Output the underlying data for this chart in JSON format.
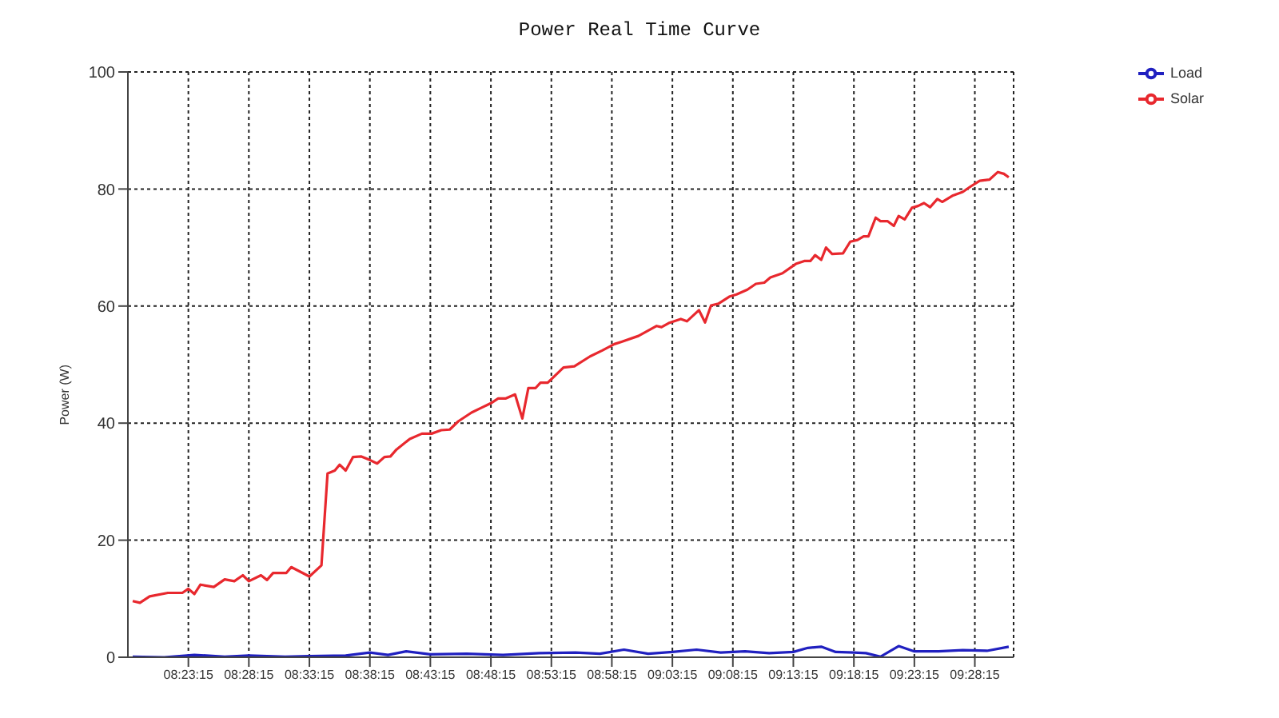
{
  "chart_data": {
    "type": "line",
    "title": "Power Real Time Curve",
    "ylabel": "Power (W)",
    "xlim": [
      8.3042,
      9.5242
    ],
    "ylim": [
      0,
      100
    ],
    "xticks": [
      {
        "value": 8.3875,
        "label": "08:23:15"
      },
      {
        "value": 8.4708,
        "label": "08:28:15"
      },
      {
        "value": 8.5542,
        "label": "08:33:15"
      },
      {
        "value": 8.6375,
        "label": "08:38:15"
      },
      {
        "value": 8.7208,
        "label": "08:43:15"
      },
      {
        "value": 8.8042,
        "label": "08:48:15"
      },
      {
        "value": 8.8875,
        "label": "08:53:15"
      },
      {
        "value": 8.9708,
        "label": "08:58:15"
      },
      {
        "value": 9.0542,
        "label": "09:03:15"
      },
      {
        "value": 9.1375,
        "label": "09:08:15"
      },
      {
        "value": 9.2208,
        "label": "09:13:15"
      },
      {
        "value": 9.3042,
        "label": "09:18:15"
      },
      {
        "value": 9.3875,
        "label": "09:23:15"
      },
      {
        "value": 9.4708,
        "label": "09:28:15"
      }
    ],
    "yticks": [
      0,
      20,
      40,
      60,
      80,
      100
    ],
    "grid": true,
    "legend": "top right",
    "marker": "none",
    "line_style": "solid",
    "series": [
      {
        "name": "Solar",
        "color": "#e8282e",
        "x": [
          8.3108,
          8.3208,
          8.3342,
          8.3592,
          8.3792,
          8.3875,
          8.3958,
          8.4042,
          8.4225,
          8.4375,
          8.4508,
          8.4625,
          8.4708,
          8.4875,
          8.4958,
          8.5042,
          8.5225,
          8.5292,
          8.5542,
          8.5708,
          8.5792,
          8.5892,
          8.5958,
          8.6042,
          8.6142,
          8.6258,
          8.6375,
          8.6475,
          8.6575,
          8.6658,
          8.6742,
          8.6925,
          8.7092,
          8.7225,
          8.7358,
          8.7475,
          8.7592,
          8.7775,
          8.7908,
          8.8042,
          8.8142,
          8.8242,
          8.8375,
          8.8475,
          8.8558,
          8.8658,
          8.8725,
          8.8825,
          8.9042,
          8.9192,
          8.9408,
          8.9575,
          8.9742,
          8.9842,
          9.0075,
          9.0325,
          9.0392,
          9.0492,
          9.0658,
          9.0742,
          9.0908,
          9.0992,
          9.1075,
          9.1175,
          9.1325,
          9.1425,
          9.1575,
          9.1692,
          9.1808,
          9.1892,
          9.2058,
          9.2242,
          9.2358,
          9.2442,
          9.2508,
          9.2592,
          9.2658,
          9.2742,
          9.2892,
          9.2992,
          9.3092,
          9.3175,
          9.3242,
          9.3342,
          9.3408,
          9.3508,
          9.3592,
          9.3658,
          9.3742,
          9.3842,
          9.3925,
          9.4008,
          9.4092,
          9.4192,
          9.4258,
          9.4408,
          9.4542,
          9.4658,
          9.4775,
          9.4908,
          9.5025,
          9.5108,
          9.5175
        ],
        "values": [
          9.6,
          9.3,
          10.4,
          11.0,
          11.0,
          11.7,
          10.8,
          12.4,
          12.0,
          13.3,
          13.0,
          14.0,
          13.0,
          14.0,
          13.2,
          14.4,
          14.4,
          15.4,
          13.8,
          15.7,
          31.4,
          31.9,
          32.9,
          31.9,
          34.2,
          34.3,
          33.7,
          33.1,
          34.2,
          34.3,
          35.5,
          37.3,
          38.2,
          38.2,
          38.8,
          38.9,
          40.3,
          41.8,
          42.6,
          43.4,
          44.2,
          44.2,
          44.9,
          40.8,
          46.0,
          46.0,
          46.9,
          46.9,
          49.5,
          49.7,
          51.4,
          52.4,
          53.5,
          53.9,
          54.9,
          56.6,
          56.4,
          57.1,
          57.8,
          57.4,
          59.3,
          57.2,
          60.1,
          60.4,
          61.6,
          62.0,
          62.8,
          63.8,
          64.0,
          64.9,
          65.6,
          67.2,
          67.7,
          67.7,
          68.7,
          67.9,
          70.0,
          68.9,
          69.0,
          71.0,
          71.3,
          71.9,
          71.9,
          75.1,
          74.5,
          74.5,
          73.7,
          75.4,
          74.8,
          76.8,
          77.1,
          77.6,
          76.9,
          78.3,
          77.8,
          78.9,
          79.5,
          80.5,
          81.4,
          81.6,
          82.9,
          82.6,
          82.0
        ]
      },
      {
        "name": "Load",
        "color": "#2020c0",
        "x": [
          8.3108,
          8.3542,
          8.3958,
          8.4375,
          8.4708,
          8.5208,
          8.5542,
          8.6042,
          8.6375,
          8.6625,
          8.6875,
          8.7208,
          8.7708,
          8.8208,
          8.8708,
          8.9208,
          8.9542,
          8.9875,
          9.0208,
          9.0542,
          9.0875,
          9.1208,
          9.1542,
          9.1875,
          9.2208,
          9.2408,
          9.2592,
          9.2792,
          9.3042,
          9.3208,
          9.3408,
          9.3658,
          9.3875,
          9.4208,
          9.4542,
          9.4875,
          9.5175
        ],
        "values": [
          0.1,
          0.0,
          0.4,
          0.1,
          0.3,
          0.1,
          0.2,
          0.3,
          0.8,
          0.4,
          1.0,
          0.5,
          0.6,
          0.4,
          0.7,
          0.8,
          0.6,
          1.3,
          0.6,
          0.9,
          1.3,
          0.8,
          1.0,
          0.7,
          0.9,
          1.6,
          1.8,
          0.9,
          0.8,
          0.7,
          0.1,
          1.9,
          1.0,
          1.0,
          1.2,
          1.1,
          1.8
        ]
      }
    ]
  }
}
